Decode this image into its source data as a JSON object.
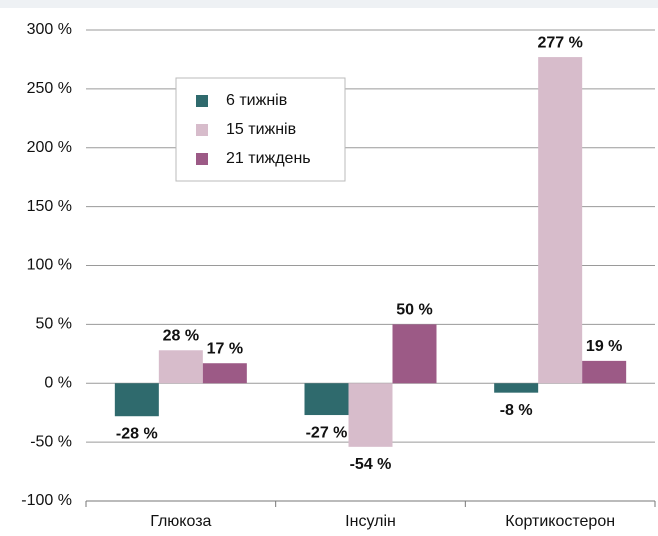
{
  "chart_data": {
    "type": "bar",
    "categories": [
      "Глюкоза",
      "Інсулін",
      "Кортикостерон"
    ],
    "series": [
      {
        "name": "6 тижнів",
        "color": "#2f6a6d",
        "values": [
          -28,
          -27,
          -8
        ],
        "value_labels": [
          "-28 %",
          "-27 %",
          "-8 %"
        ]
      },
      {
        "name": "15 тижнів",
        "color": "#d7bccb",
        "values": [
          28,
          -54,
          277
        ],
        "value_labels": [
          "28 %",
          "-54 %",
          "277 %"
        ]
      },
      {
        "name": "21 тиждень",
        "color": "#9c5a86",
        "values": [
          17,
          50,
          19
        ],
        "value_labels": [
          "17 %",
          "50 %",
          "19 %"
        ]
      }
    ],
    "ylim": [
      -100,
      300
    ],
    "yticks": [
      {
        "value": -100,
        "label": "-100 %"
      },
      {
        "value": -50,
        "label": "-50 %"
      },
      {
        "value": 0,
        "label": "0 %"
      },
      {
        "value": 50,
        "label": "50 %"
      },
      {
        "value": 100,
        "label": "100 %"
      },
      {
        "value": 150,
        "label": "150 %"
      },
      {
        "value": 200,
        "label": "200 %"
      },
      {
        "value": 250,
        "label": "250 %"
      },
      {
        "value": 300,
        "label": "300 %"
      }
    ],
    "grid": true,
    "legend": "upper left"
  }
}
